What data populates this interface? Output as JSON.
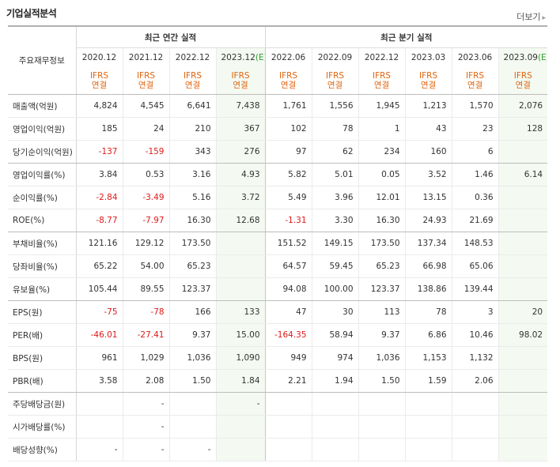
{
  "header": {
    "title": "기업실적분석",
    "more_label": "더보기",
    "more_icon": "chevron-right-icon"
  },
  "table": {
    "corner_label": "주요재무정보",
    "annual_group": "최근 연간 실적",
    "quarter_group": "최근 분기 실적",
    "periods": [
      {
        "label": "2020.12",
        "est": false
      },
      {
        "label": "2021.12",
        "est": false
      },
      {
        "label": "2022.12",
        "est": false
      },
      {
        "label": "2023.12",
        "est": true
      },
      {
        "label": "2022.06",
        "est": false
      },
      {
        "label": "2022.09",
        "est": false
      },
      {
        "label": "2022.12",
        "est": false
      },
      {
        "label": "2023.03",
        "est": false
      },
      {
        "label": "2023.06",
        "est": false
      },
      {
        "label": "2023.09",
        "est": true
      }
    ],
    "est_mark": "(E)",
    "ifrs_line1": "IFRS",
    "ifrs_line2": "연결",
    "rows": [
      {
        "label": "매출액(억원)",
        "values": [
          "4,824",
          "4,545",
          "6,641",
          "7,438",
          "1,761",
          "1,556",
          "1,945",
          "1,213",
          "1,570",
          "2,076"
        ],
        "sep": false
      },
      {
        "label": "영업이익(억원)",
        "values": [
          "185",
          "24",
          "210",
          "367",
          "102",
          "78",
          "1",
          "43",
          "23",
          "128"
        ],
        "sep": false
      },
      {
        "label": "당기순이익(억원)",
        "values": [
          "-137",
          "-159",
          "343",
          "276",
          "97",
          "62",
          "234",
          "160",
          "6",
          ""
        ],
        "sep": true
      },
      {
        "label": "영업이익률(%)",
        "values": [
          "3.84",
          "0.53",
          "3.16",
          "4.93",
          "5.82",
          "5.01",
          "0.05",
          "3.52",
          "1.46",
          "6.14"
        ],
        "sep": false
      },
      {
        "label": "순이익률(%)",
        "values": [
          "-2.84",
          "-3.49",
          "5.16",
          "3.72",
          "5.49",
          "3.96",
          "12.01",
          "13.15",
          "0.36",
          ""
        ],
        "sep": false
      },
      {
        "label": "ROE(%)",
        "values": [
          "-8.77",
          "-7.97",
          "16.30",
          "12.68",
          "-1.31",
          "3.30",
          "16.30",
          "24.93",
          "21.69",
          ""
        ],
        "sep": true
      },
      {
        "label": "부채비율(%)",
        "values": [
          "121.16",
          "129.12",
          "173.50",
          "",
          "151.52",
          "149.15",
          "173.50",
          "137.34",
          "148.53",
          ""
        ],
        "sep": false
      },
      {
        "label": "당좌비율(%)",
        "values": [
          "65.22",
          "54.00",
          "65.23",
          "",
          "64.57",
          "59.45",
          "65.23",
          "66.98",
          "65.06",
          ""
        ],
        "sep": false
      },
      {
        "label": "유보율(%)",
        "values": [
          "105.44",
          "89.55",
          "123.37",
          "",
          "94.08",
          "100.00",
          "123.37",
          "138.86",
          "139.44",
          ""
        ],
        "sep": true
      },
      {
        "label": "EPS(원)",
        "values": [
          "-75",
          "-78",
          "166",
          "133",
          "47",
          "30",
          "113",
          "78",
          "3",
          "20"
        ],
        "sep": false
      },
      {
        "label": "PER(배)",
        "values": [
          "-46.01",
          "-27.41",
          "9.37",
          "15.00",
          "-164.35",
          "58.94",
          "9.37",
          "6.86",
          "10.46",
          "98.02"
        ],
        "sep": false
      },
      {
        "label": "BPS(원)",
        "values": [
          "961",
          "1,029",
          "1,036",
          "1,090",
          "949",
          "974",
          "1,036",
          "1,153",
          "1,132",
          ""
        ],
        "sep": false
      },
      {
        "label": "PBR(배)",
        "values": [
          "3.58",
          "2.08",
          "1.50",
          "1.84",
          "2.21",
          "1.94",
          "1.50",
          "1.59",
          "2.06",
          ""
        ],
        "sep": true
      },
      {
        "label": "주당배당금(원)",
        "values": [
          "",
          "-",
          "",
          "-",
          "",
          "",
          "",
          "",
          "",
          ""
        ],
        "sep": false
      },
      {
        "label": "시가배당률(%)",
        "values": [
          "",
          "-",
          "",
          "",
          "",
          "",
          "",
          "",
          "",
          ""
        ],
        "sep": false
      },
      {
        "label": "배당성향(%)",
        "values": [
          "-",
          "-",
          "-",
          "",
          "",
          "",
          "",
          "",
          "",
          ""
        ],
        "sep": false
      }
    ]
  }
}
